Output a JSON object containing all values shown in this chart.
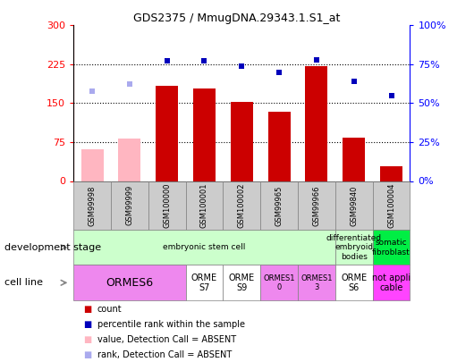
{
  "title": "GDS2375 / MmugDNA.29343.1.S1_at",
  "samples": [
    "GSM99998",
    "GSM99999",
    "GSM100000",
    "GSM100001",
    "GSM100002",
    "GSM99965",
    "GSM99966",
    "GSM99840",
    "GSM100004"
  ],
  "bar_values": [
    62,
    82,
    183,
    178,
    153,
    133,
    222,
    83,
    28
  ],
  "bar_colors": [
    "#FFB6C1",
    "#FFB6C1",
    "#CC0000",
    "#CC0000",
    "#CC0000",
    "#CC0000",
    "#CC0000",
    "#CC0000",
    "#CC0000"
  ],
  "rank_values": [
    57.5,
    62.5,
    77,
    77,
    73.5,
    70,
    78,
    64,
    55
  ],
  "rank_colors": [
    "#AAAAEE",
    "#AAAAEE",
    "#0000BB",
    "#0000BB",
    "#0000BB",
    "#0000BB",
    "#0000BB",
    "#0000BB",
    "#0000BB"
  ],
  "ylim_left": [
    0,
    300
  ],
  "ylim_right": [
    0,
    100
  ],
  "yticks_left": [
    0,
    75,
    150,
    225,
    300
  ],
  "yticks_right": [
    0,
    25,
    50,
    75,
    100
  ],
  "ytick_labels_left": [
    "0",
    "75",
    "150",
    "225",
    "300"
  ],
  "ytick_labels_right": [
    "0%",
    "25%",
    "50%",
    "75%",
    "100%"
  ],
  "hgrid_at": [
    75,
    150,
    225
  ],
  "dev_stage_groups": [
    {
      "label": "embryonic stem cell",
      "start": 0,
      "end": 7,
      "color": "#CCFFCC"
    },
    {
      "label": "differentiated\nembryoid\nbodies",
      "start": 7,
      "end": 8,
      "color": "#CCFFCC"
    },
    {
      "label": "somatic\nfibroblast",
      "start": 8,
      "end": 9,
      "color": "#00EE44"
    }
  ],
  "cell_line_groups": [
    {
      "label": "ORMES6",
      "start": 0,
      "end": 3,
      "color": "#EE88EE",
      "fontsize": 9
    },
    {
      "label": "ORME\nS7",
      "start": 3,
      "end": 4,
      "color": "#FFFFFF",
      "fontsize": 7
    },
    {
      "label": "ORME\nS9",
      "start": 4,
      "end": 5,
      "color": "#FFFFFF",
      "fontsize": 7
    },
    {
      "label": "ORMES1\n0",
      "start": 5,
      "end": 6,
      "color": "#EE88EE",
      "fontsize": 6
    },
    {
      "label": "ORMES1\n3",
      "start": 6,
      "end": 7,
      "color": "#EE88EE",
      "fontsize": 6
    },
    {
      "label": "ORME\nS6",
      "start": 7,
      "end": 8,
      "color": "#FFFFFF",
      "fontsize": 7
    },
    {
      "label": "not appli\ncable",
      "start": 8,
      "end": 9,
      "color": "#FF44FF",
      "fontsize": 7
    }
  ],
  "legend_items": [
    {
      "label": "count",
      "color": "#CC0000"
    },
    {
      "label": "percentile rank within the sample",
      "color": "#0000BB"
    },
    {
      "label": "value, Detection Call = ABSENT",
      "color": "#FFB6C1"
    },
    {
      "label": "rank, Detection Call = ABSENT",
      "color": "#AAAAEE"
    }
  ],
  "dev_label": "development stage",
  "cell_label": "cell line",
  "bg_color": "#FFFFFF",
  "plot_bg": "#FFFFFF",
  "tick_bg": "#DDDDDD"
}
